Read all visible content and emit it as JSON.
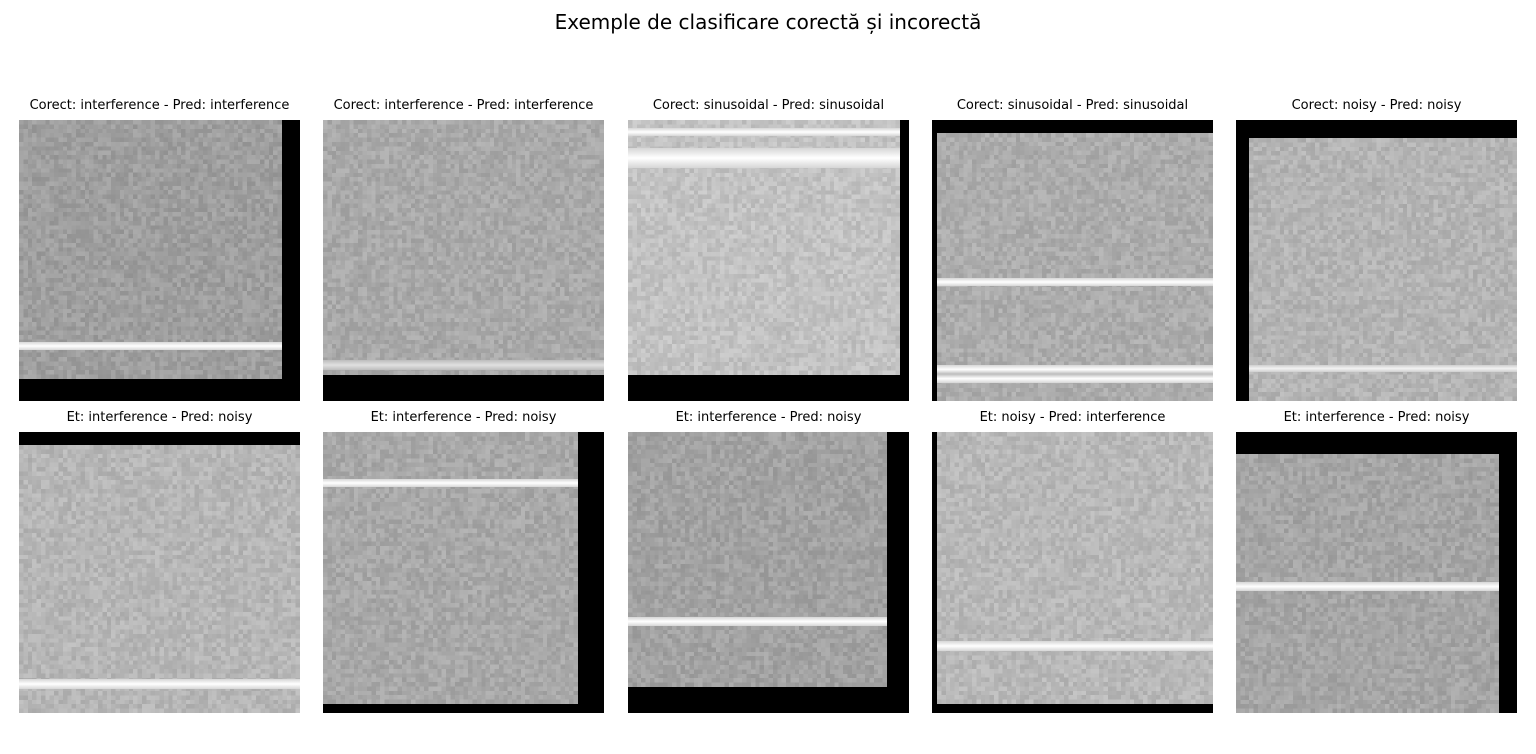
{
  "figure": {
    "title": "Exemple de clasificare corectă și incorectă"
  },
  "panels": [
    {
      "title": "Corect: interference - Pred: interference",
      "row": "correct",
      "tone": "#9e9e9e"
    },
    {
      "title": "Corect: interference - Pred: interference",
      "row": "correct",
      "tone": "#a9a9a9"
    },
    {
      "title": "Corect: sinusoidal - Pred: sinusoidal",
      "row": "correct",
      "tone": "#c2c2c2"
    },
    {
      "title": "Corect: sinusoidal - Pred: sinusoidal",
      "row": "correct",
      "tone": "#acacac"
    },
    {
      "title": "Corect: noisy - Pred: noisy",
      "row": "correct",
      "tone": "#b4b4b4"
    },
    {
      "title": "Et: interference - Pred: noisy",
      "row": "incorrect",
      "tone": "#b6b6b6"
    },
    {
      "title": "Et: interference - Pred: noisy",
      "row": "incorrect",
      "tone": "#a8a8a8"
    },
    {
      "title": "Et: interference - Pred: noisy",
      "row": "incorrect",
      "tone": "#a2a2a2"
    },
    {
      "title": "Et: noisy - Pred: interference",
      "row": "incorrect",
      "tone": "#b8b8b8"
    },
    {
      "title": "Et: interference - Pred: noisy",
      "row": "incorrect",
      "tone": "#a5a5a5"
    }
  ]
}
